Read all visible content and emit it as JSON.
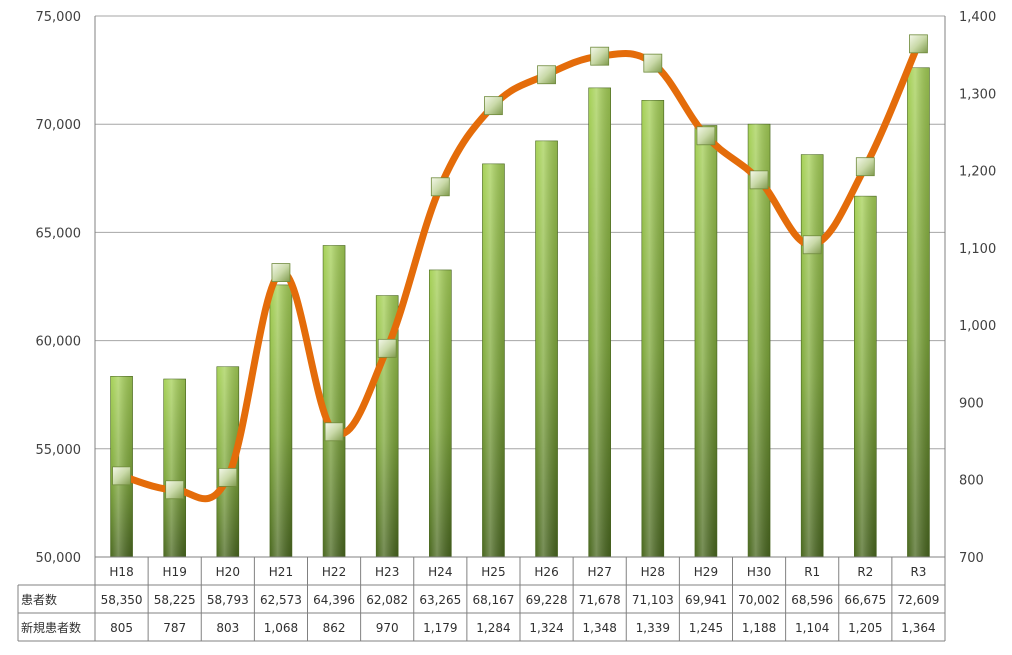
{
  "chart_data": {
    "type": "bar",
    "categories": [
      "H18",
      "H19",
      "H20",
      "H21",
      "H22",
      "H23",
      "H24",
      "H25",
      "H26",
      "H27",
      "H28",
      "H29",
      "H30",
      "R1",
      "R2",
      "R3"
    ],
    "series": [
      {
        "name": "患者数",
        "type": "bar",
        "axis": "left",
        "values": [
          58350,
          58225,
          58793,
          62573,
          64396,
          62082,
          63265,
          68167,
          69228,
          71678,
          71103,
          69941,
          70002,
          68596,
          66675,
          72609
        ],
        "labels": [
          "58,350",
          "58,225",
          "58,793",
          "62,573",
          "64,396",
          "62,082",
          "63,265",
          "68,167",
          "69,228",
          "71,678",
          "71,103",
          "69,941",
          "70,002",
          "68,596",
          "66,675",
          "72,609"
        ]
      },
      {
        "name": "新規患者数",
        "type": "line",
        "axis": "right",
        "values": [
          805,
          787,
          803,
          1068,
          862,
          970,
          1179,
          1284,
          1324,
          1348,
          1339,
          1245,
          1188,
          1104,
          1205,
          1364
        ],
        "labels": [
          "805",
          "787",
          "803",
          "1,068",
          "862",
          "970",
          "1,179",
          "1,284",
          "1,324",
          "1,348",
          "1,339",
          "1,245",
          "1,188",
          "1,104",
          "1,205",
          "1,364"
        ]
      }
    ],
    "left_axis": {
      "ylim": [
        50000,
        75000
      ],
      "ticks": [
        50000,
        55000,
        60000,
        65000,
        70000,
        75000
      ],
      "tick_labels": [
        "50,000",
        "55,000",
        "60,000",
        "65,000",
        "70,000",
        "75,000"
      ]
    },
    "right_axis": {
      "ylim": [
        700,
        1400
      ],
      "ticks": [
        700,
        800,
        900,
        1000,
        1100,
        1200,
        1300,
        1400
      ],
      "tick_labels": [
        "700",
        "800",
        "900",
        "1,000",
        "1,100",
        "1,200",
        "1,300",
        "1,400"
      ]
    },
    "grid": true,
    "legend": "data table below chart",
    "colors": {
      "bar_light": "#9bc94c",
      "bar_dark": "#4f6e22",
      "line": "#e46c0a",
      "marker_light": "#eef3e2",
      "marker_dark": "#8aa45c",
      "grid": "#a6a6a6",
      "axis": "#808080"
    }
  }
}
